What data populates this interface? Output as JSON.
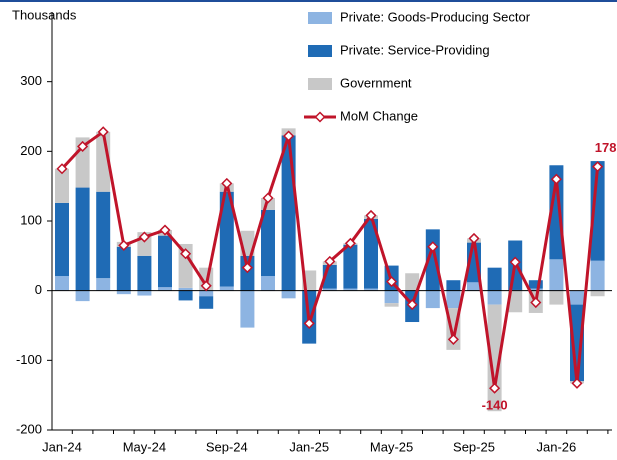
{
  "chart_data": {
    "type": "stacked_bar_line",
    "y_axis_label": "Thousands",
    "categories": [
      "Jan-24",
      null,
      null,
      null,
      "May-24",
      null,
      null,
      null,
      "Sep-24",
      null,
      null,
      null,
      "Jan-25",
      null,
      null,
      null,
      "May-25",
      null,
      null,
      null,
      "Sep-25",
      null,
      null,
      null,
      "Jan-26",
      null,
      null
    ],
    "series": [
      {
        "name": "Private: Goods-Producing Sector",
        "kind": "bar",
        "color": "#8db4e2",
        "values": [
          21,
          -15,
          18,
          -5,
          -7,
          5,
          4,
          -8,
          6,
          -53,
          21,
          -11,
          1,
          3,
          3,
          3,
          -18,
          0,
          -25,
          -25,
          12,
          -20,
          1,
          3,
          45,
          -20,
          43
        ]
      },
      {
        "name": "Private: Service-Providing",
        "kind": "bar",
        "color": "#1f6bb5",
        "values": [
          105,
          148,
          124,
          63,
          50,
          74,
          -14,
          -18,
          136,
          50,
          95,
          223,
          -76,
          34,
          63,
          100,
          36,
          -45,
          88,
          15,
          57,
          33,
          71,
          12,
          135,
          -110,
          143
        ]
      },
      {
        "name": "Government",
        "kind": "bar",
        "color": "#c8c8c8",
        "values": [
          49,
          72,
          86,
          7,
          34,
          8,
          63,
          33,
          12,
          36,
          17,
          10,
          28,
          5,
          2,
          5,
          -5,
          25,
          0,
          -60,
          6,
          -153,
          -31,
          -32,
          -20,
          -3,
          -8
        ]
      },
      {
        "name": "MoM Change",
        "kind": "line",
        "color": "#c0142a",
        "values": [
          175,
          207,
          228,
          65,
          77,
          87,
          53,
          7,
          154,
          33,
          133,
          222,
          -47,
          42,
          68,
          108,
          13,
          -20,
          63,
          -70,
          75,
          -140,
          41,
          -17,
          160,
          -133,
          178
        ]
      }
    ],
    "ylim": [
      -200,
      400
    ],
    "yticks": [
      -200,
      -100,
      0,
      100,
      200,
      300
    ]
  }
}
